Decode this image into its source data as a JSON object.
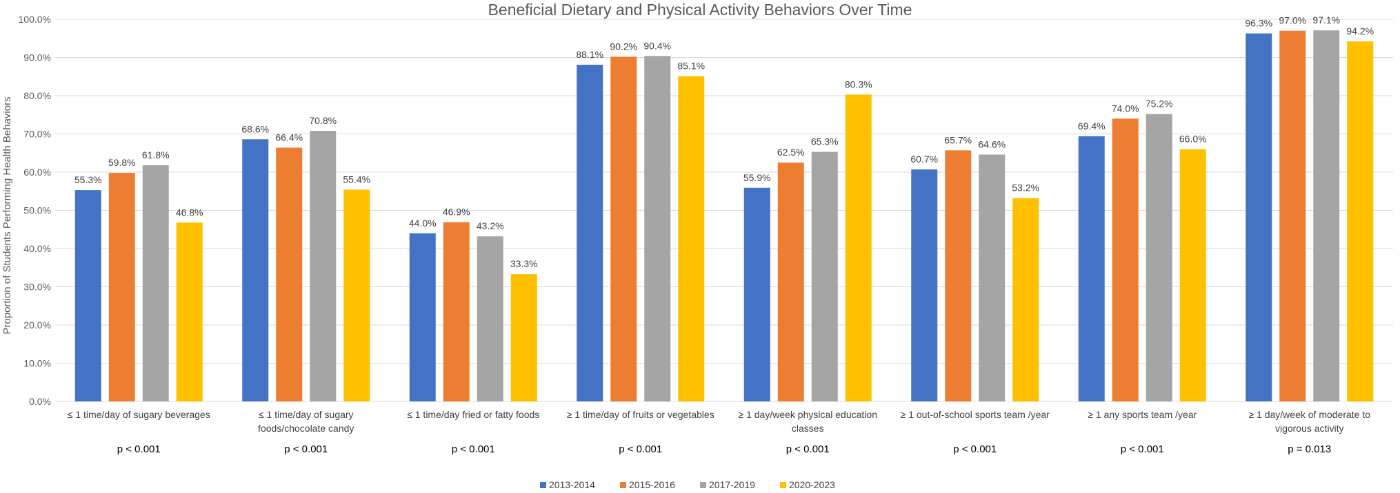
{
  "chart_data": {
    "type": "bar",
    "title": "Beneficial Dietary and Physical Activity Behaviors Over Time",
    "ylabel": "Proportion of Students Performing Health Behaviors",
    "xlabel": "",
    "ylim": [
      0,
      100
    ],
    "yticks": [
      "0.0%",
      "10.0%",
      "20.0%",
      "30.0%",
      "40.0%",
      "50.0%",
      "60.0%",
      "70.0%",
      "80.0%",
      "90.0%",
      "100.0%"
    ],
    "categories": [
      [
        "≤ 1 time/day of sugary beverages"
      ],
      [
        "≤ 1 time/day of sugary",
        "foods/chocolate candy"
      ],
      [
        "≤ 1 time/day fried or fatty foods"
      ],
      [
        "≥ 1 time/day of fruits or vegetables"
      ],
      [
        "≥ 1 day/week physical education",
        "classes"
      ],
      [
        "≥ 1 out-of-school sports team /year"
      ],
      [
        "≥ 1 any sports team /year"
      ],
      [
        "≥ 1 day/week of moderate to",
        "vigorous activity"
      ]
    ],
    "p_values": [
      "p < 0.001",
      "p < 0.001",
      "p < 0.001",
      "p < 0.001",
      "p < 0.001",
      "p < 0.001",
      "p < 0.001",
      "p = 0.013"
    ],
    "series": [
      {
        "name": "2013-2014",
        "color": "#4472C4",
        "values": [
          55.3,
          68.6,
          44.0,
          88.1,
          55.9,
          60.7,
          69.4,
          96.3
        ],
        "labels": [
          "55.3%",
          "68.6%",
          "44.0%",
          "88.1%",
          "55.9%",
          "60.7%",
          "69.4%",
          "96.3%"
        ]
      },
      {
        "name": "2015-2016",
        "color": "#ED7D31",
        "values": [
          59.8,
          66.4,
          46.9,
          90.2,
          62.5,
          65.7,
          74.0,
          97.0
        ],
        "labels": [
          "59.8%",
          "66.4%",
          "46.9%",
          "90.2%",
          "62.5%",
          "65.7%",
          "74.0%",
          "97.0%"
        ]
      },
      {
        "name": "2017-2019",
        "color": "#A5A5A5",
        "values": [
          61.8,
          70.8,
          43.2,
          90.4,
          65.3,
          64.6,
          75.2,
          97.1
        ],
        "labels": [
          "61.8%",
          "70.8%",
          "43.2%",
          "90.4%",
          "65.3%",
          "64.6%",
          "75.2%",
          "97.1%"
        ]
      },
      {
        "name": "2020-2023",
        "color": "#FFC000",
        "values": [
          46.8,
          55.4,
          33.3,
          85.1,
          80.3,
          53.2,
          66.0,
          94.2
        ],
        "labels": [
          "46.8%",
          "55.4%",
          "33.3%",
          "85.1%",
          "80.3%",
          "53.2%",
          "66.0%",
          "94.2%"
        ]
      }
    ],
    "legend_position": "bottom",
    "grid": true
  }
}
